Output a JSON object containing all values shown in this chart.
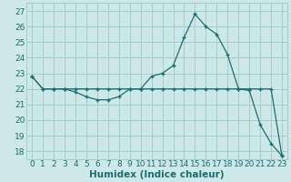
{
  "xlabel": "Humidex (Indice chaleur)",
  "background_color": "#cce8e8",
  "grid_color": "#aacccc",
  "line_color": "#1a7070",
  "xlim": [
    -0.5,
    23.5
  ],
  "ylim": [
    17.5,
    27.5
  ],
  "yticks": [
    18,
    19,
    20,
    21,
    22,
    23,
    24,
    25,
    26,
    27
  ],
  "xticks": [
    0,
    1,
    2,
    3,
    4,
    5,
    6,
    7,
    8,
    9,
    10,
    11,
    12,
    13,
    14,
    15,
    16,
    17,
    18,
    19,
    20,
    21,
    22,
    23
  ],
  "line1_x": [
    0,
    1,
    2,
    3,
    4,
    5,
    6,
    7,
    8,
    9,
    10,
    11,
    12,
    13,
    14,
    15,
    16,
    17,
    18,
    19,
    20,
    21,
    22,
    23
  ],
  "line1_y": [
    22.8,
    22.0,
    22.0,
    22.0,
    21.8,
    21.5,
    21.3,
    21.3,
    21.5,
    22.0,
    22.0,
    22.8,
    23.0,
    23.5,
    25.3,
    26.8,
    26.0,
    25.5,
    24.2,
    22.0,
    21.9,
    19.7,
    18.5,
    17.7
  ],
  "line2_x": [
    0,
    1,
    2,
    3,
    4,
    5,
    6,
    7,
    8,
    9,
    10,
    11,
    12,
    13,
    14,
    15,
    16,
    17,
    18,
    19,
    20,
    21,
    22,
    23
  ],
  "line2_y": [
    22.8,
    22.0,
    22.0,
    22.0,
    22.0,
    22.0,
    22.0,
    22.0,
    22.0,
    22.0,
    22.0,
    22.0,
    22.0,
    22.0,
    22.0,
    22.0,
    22.0,
    22.0,
    22.0,
    22.0,
    22.0,
    22.0,
    22.0,
    17.7
  ],
  "tick_fontsize": 6.5,
  "xlabel_fontsize": 7.5,
  "linewidth": 0.9,
  "markersize": 3.5,
  "markeredgewidth": 1.0
}
